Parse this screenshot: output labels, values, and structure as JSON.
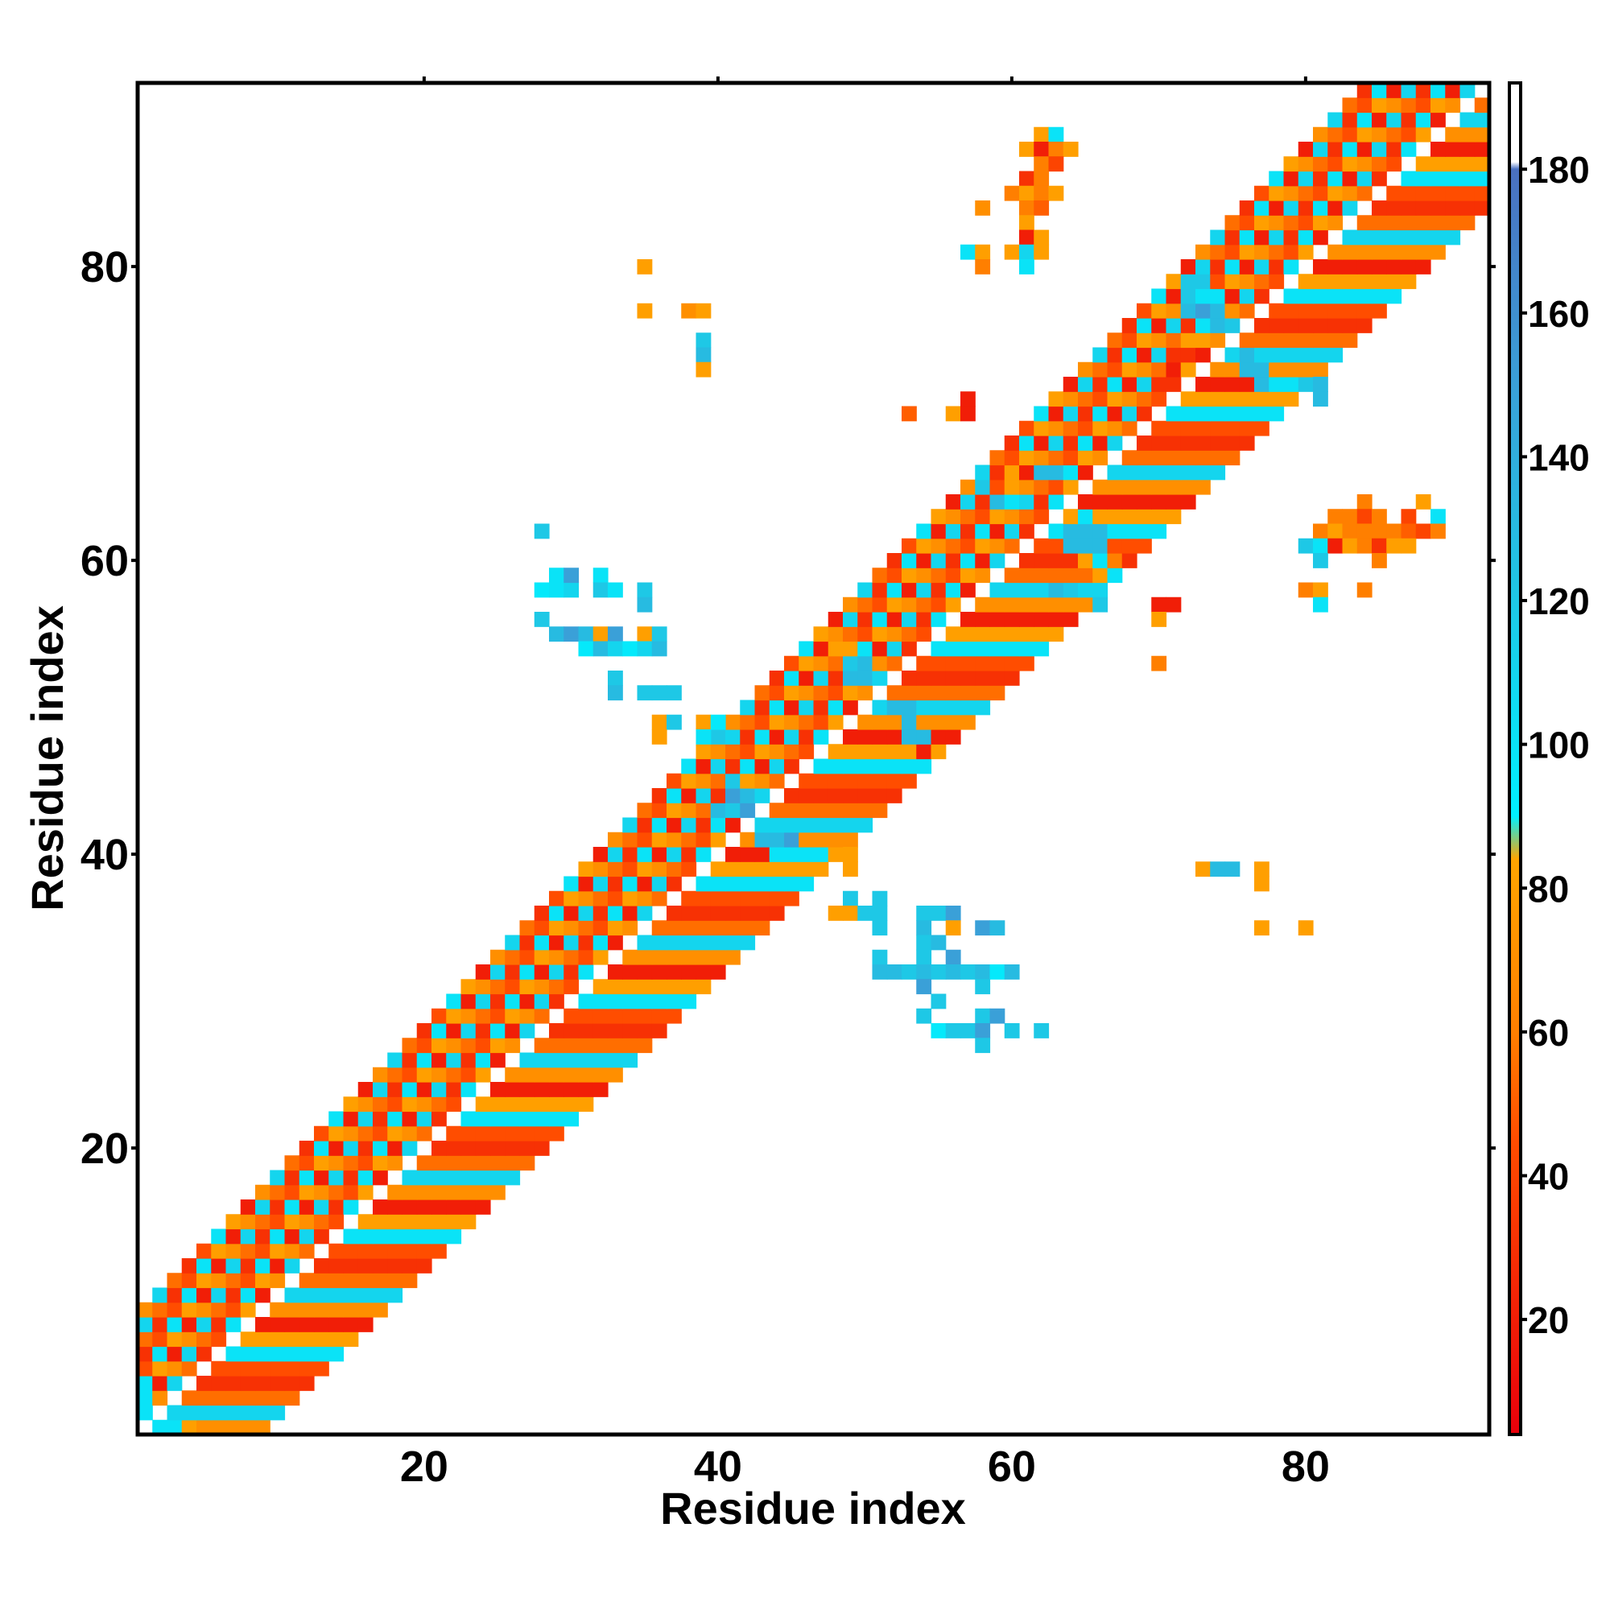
{
  "chart_data": {
    "type": "heatmap",
    "xlabel": "Residue index",
    "ylabel": "Residue index",
    "xlim": [
      0.5,
      92.5
    ],
    "ylim": [
      0.5,
      92.5
    ],
    "x_ticks": [
      20,
      40,
      60,
      80
    ],
    "y_ticks": [
      20,
      40,
      60,
      80
    ],
    "colorbar": {
      "min": 4,
      "max": 192,
      "ticks": [
        20,
        40,
        60,
        80,
        100,
        120,
        140,
        160,
        180
      ],
      "color_stops": [
        {
          "value": 4,
          "color": "#e8000b"
        },
        {
          "value": 45,
          "color": "#ff4d00"
        },
        {
          "value": 60,
          "color": "#ff7f00"
        },
        {
          "value": 84,
          "color": "#ffa500"
        },
        {
          "value": 90,
          "color": "#00f0ff"
        },
        {
          "value": 120,
          "color": "#1ec8e6"
        },
        {
          "value": 150,
          "color": "#3aa0d8"
        },
        {
          "value": 180,
          "color": "#4a70c0"
        },
        {
          "value": 181,
          "color": "#ffffff"
        },
        {
          "value": 192,
          "color": "#ffffff"
        }
      ]
    },
    "diagonal_band": {
      "segments": [
        [
          1,
          92
        ]
      ],
      "max_offset": 8
    },
    "cells": [
      {
        "x": 28,
        "y": 58,
        "v": 95
      },
      {
        "x": 29,
        "y": 58,
        "v": 100
      },
      {
        "x": 30,
        "y": 58,
        "v": 110
      },
      {
        "x": 29,
        "y": 59,
        "v": 100
      },
      {
        "x": 30,
        "y": 59,
        "v": 150
      },
      {
        "x": 28,
        "y": 56,
        "v": 120
      },
      {
        "x": 28,
        "y": 62,
        "v": 120
      },
      {
        "x": 32,
        "y": 59,
        "v": 100
      },
      {
        "x": 32,
        "y": 58,
        "v": 120
      },
      {
        "x": 33,
        "y": 58,
        "v": 100
      },
      {
        "x": 35,
        "y": 58,
        "v": 120
      },
      {
        "x": 35,
        "y": 57,
        "v": 130
      },
      {
        "x": 29,
        "y": 55,
        "v": 130
      },
      {
        "x": 30,
        "y": 55,
        "v": 150
      },
      {
        "x": 31,
        "y": 55,
        "v": 130
      },
      {
        "x": 32,
        "y": 55,
        "v": 80
      },
      {
        "x": 33,
        "y": 55,
        "v": 150
      },
      {
        "x": 35,
        "y": 55,
        "v": 80
      },
      {
        "x": 36,
        "y": 55,
        "v": 120
      },
      {
        "x": 31,
        "y": 54,
        "v": 95
      },
      {
        "x": 32,
        "y": 54,
        "v": 130
      },
      {
        "x": 33,
        "y": 54,
        "v": 110
      },
      {
        "x": 34,
        "y": 54,
        "v": 95
      },
      {
        "x": 35,
        "y": 54,
        "v": 110
      },
      {
        "x": 36,
        "y": 54,
        "v": 130
      },
      {
        "x": 33,
        "y": 52,
        "v": 120
      },
      {
        "x": 33,
        "y": 51,
        "v": 130
      },
      {
        "x": 35,
        "y": 51,
        "v": 120
      },
      {
        "x": 36,
        "y": 51,
        "v": 120
      },
      {
        "x": 37,
        "y": 51,
        "v": 120
      },
      {
        "x": 36,
        "y": 49,
        "v": 80
      },
      {
        "x": 37,
        "y": 49,
        "v": 120
      },
      {
        "x": 36,
        "y": 48,
        "v": 80
      },
      {
        "x": 39,
        "y": 49,
        "v": 80
      },
      {
        "x": 40,
        "y": 49,
        "v": 95
      },
      {
        "x": 40,
        "y": 48,
        "v": 120
      },
      {
        "x": 39,
        "y": 48,
        "v": 100
      },
      {
        "x": 48,
        "y": 40,
        "v": 80
      },
      {
        "x": 49,
        "y": 40,
        "v": 80
      },
      {
        "x": 49,
        "y": 39,
        "v": 80
      },
      {
        "x": 49,
        "y": 37,
        "v": 120
      },
      {
        "x": 51,
        "y": 37,
        "v": 120
      },
      {
        "x": 48,
        "y": 36,
        "v": 80
      },
      {
        "x": 49,
        "y": 36,
        "v": 80
      },
      {
        "x": 50,
        "y": 36,
        "v": 120
      },
      {
        "x": 51,
        "y": 36,
        "v": 120
      },
      {
        "x": 51,
        "y": 35,
        "v": 120
      },
      {
        "x": 54,
        "y": 36,
        "v": 120
      },
      {
        "x": 55,
        "y": 36,
        "v": 120
      },
      {
        "x": 56,
        "y": 36,
        "v": 150
      },
      {
        "x": 54,
        "y": 35,
        "v": 130
      },
      {
        "x": 56,
        "y": 35,
        "v": 80
      },
      {
        "x": 58,
        "y": 35,
        "v": 150
      },
      {
        "x": 59,
        "y": 35,
        "v": 130
      },
      {
        "x": 54,
        "y": 34,
        "v": 120
      },
      {
        "x": 55,
        "y": 34,
        "v": 130
      },
      {
        "x": 54,
        "y": 33,
        "v": 120
      },
      {
        "x": 56,
        "y": 33,
        "v": 150
      },
      {
        "x": 51,
        "y": 33,
        "v": 120
      },
      {
        "x": 51,
        "y": 32,
        "v": 130
      },
      {
        "x": 52,
        "y": 32,
        "v": 130
      },
      {
        "x": 53,
        "y": 32,
        "v": 120
      },
      {
        "x": 54,
        "y": 32,
        "v": 130
      },
      {
        "x": 55,
        "y": 32,
        "v": 120
      },
      {
        "x": 56,
        "y": 32,
        "v": 130
      },
      {
        "x": 57,
        "y": 32,
        "v": 120
      },
      {
        "x": 58,
        "y": 32,
        "v": 130
      },
      {
        "x": 59,
        "y": 32,
        "v": 95
      },
      {
        "x": 60,
        "y": 32,
        "v": 130
      },
      {
        "x": 54,
        "y": 31,
        "v": 150
      },
      {
        "x": 58,
        "y": 31,
        "v": 120
      },
      {
        "x": 55,
        "y": 30,
        "v": 120
      },
      {
        "x": 54,
        "y": 29,
        "v": 120
      },
      {
        "x": 58,
        "y": 29,
        "v": 120
      },
      {
        "x": 59,
        "y": 29,
        "v": 150
      },
      {
        "x": 55,
        "y": 28,
        "v": 95
      },
      {
        "x": 56,
        "y": 28,
        "v": 120
      },
      {
        "x": 57,
        "y": 28,
        "v": 120
      },
      {
        "x": 58,
        "y": 28,
        "v": 150
      },
      {
        "x": 60,
        "y": 28,
        "v": 120
      },
      {
        "x": 58,
        "y": 27,
        "v": 120
      },
      {
        "x": 62,
        "y": 28,
        "v": 120
      },
      {
        "x": 35,
        "y": 80,
        "v": 80
      },
      {
        "x": 35,
        "y": 77,
        "v": 80
      },
      {
        "x": 38,
        "y": 77,
        "v": 70
      },
      {
        "x": 39,
        "y": 77,
        "v": 80
      },
      {
        "x": 39,
        "y": 75,
        "v": 120
      },
      {
        "x": 39,
        "y": 74,
        "v": 130
      },
      {
        "x": 39,
        "y": 73,
        "v": 80
      },
      {
        "x": 62,
        "y": 89,
        "v": 80
      },
      {
        "x": 63,
        "y": 89,
        "v": 100
      },
      {
        "x": 61,
        "y": 88,
        "v": 80
      },
      {
        "x": 62,
        "y": 88,
        "v": 20
      },
      {
        "x": 63,
        "y": 88,
        "v": 60
      },
      {
        "x": 64,
        "y": 88,
        "v": 80
      },
      {
        "x": 62,
        "y": 87,
        "v": 60
      },
      {
        "x": 63,
        "y": 87,
        "v": 40
      },
      {
        "x": 61,
        "y": 86,
        "v": 30
      },
      {
        "x": 62,
        "y": 86,
        "v": 60
      },
      {
        "x": 60,
        "y": 85,
        "v": 60
      },
      {
        "x": 61,
        "y": 85,
        "v": 80
      },
      {
        "x": 62,
        "y": 85,
        "v": 60
      },
      {
        "x": 63,
        "y": 85,
        "v": 80
      },
      {
        "x": 58,
        "y": 84,
        "v": 70
      },
      {
        "x": 61,
        "y": 84,
        "v": 60
      },
      {
        "x": 62,
        "y": 84,
        "v": 50
      },
      {
        "x": 61,
        "y": 83,
        "v": 80
      },
      {
        "x": 61,
        "y": 82,
        "v": 20
      },
      {
        "x": 62,
        "y": 82,
        "v": 80
      },
      {
        "x": 57,
        "y": 81,
        "v": 100
      },
      {
        "x": 58,
        "y": 81,
        "v": 80
      },
      {
        "x": 60,
        "y": 81,
        "v": 80
      },
      {
        "x": 61,
        "y": 81,
        "v": 110
      },
      {
        "x": 62,
        "y": 81,
        "v": 80
      },
      {
        "x": 58,
        "y": 80,
        "v": 60
      },
      {
        "x": 61,
        "y": 80,
        "v": 100
      },
      {
        "x": 53,
        "y": 70,
        "v": 50
      },
      {
        "x": 56,
        "y": 70,
        "v": 80
      },
      {
        "x": 57,
        "y": 70,
        "v": 20
      },
      {
        "x": 57,
        "y": 71,
        "v": 20
      },
      {
        "x": 70,
        "y": 57,
        "v": 20
      },
      {
        "x": 71,
        "y": 57,
        "v": 20
      },
      {
        "x": 70,
        "y": 56,
        "v": 80
      },
      {
        "x": 70,
        "y": 53,
        "v": 60
      },
      {
        "x": 73,
        "y": 39,
        "v": 80
      },
      {
        "x": 74,
        "y": 39,
        "v": 130
      },
      {
        "x": 75,
        "y": 39,
        "v": 130
      },
      {
        "x": 77,
        "y": 39,
        "v": 80
      },
      {
        "x": 77,
        "y": 38,
        "v": 80
      },
      {
        "x": 77,
        "y": 35,
        "v": 80
      },
      {
        "x": 80,
        "y": 35,
        "v": 80
      },
      {
        "x": 84,
        "y": 64,
        "v": 60
      },
      {
        "x": 88,
        "y": 64,
        "v": 80
      },
      {
        "x": 82,
        "y": 63,
        "v": 60
      },
      {
        "x": 83,
        "y": 63,
        "v": 60
      },
      {
        "x": 84,
        "y": 63,
        "v": 40
      },
      {
        "x": 85,
        "y": 63,
        "v": 60
      },
      {
        "x": 87,
        "y": 63,
        "v": 40
      },
      {
        "x": 89,
        "y": 63,
        "v": 100
      },
      {
        "x": 81,
        "y": 62,
        "v": 60
      },
      {
        "x": 82,
        "y": 62,
        "v": 80
      },
      {
        "x": 83,
        "y": 62,
        "v": 60
      },
      {
        "x": 84,
        "y": 62,
        "v": 60
      },
      {
        "x": 85,
        "y": 62,
        "v": 60
      },
      {
        "x": 86,
        "y": 62,
        "v": 60
      },
      {
        "x": 87,
        "y": 62,
        "v": 50
      },
      {
        "x": 88,
        "y": 62,
        "v": 40
      },
      {
        "x": 89,
        "y": 62,
        "v": 60
      },
      {
        "x": 80,
        "y": 61,
        "v": 120
      },
      {
        "x": 81,
        "y": 61,
        "v": 100
      },
      {
        "x": 82,
        "y": 61,
        "v": 20
      },
      {
        "x": 83,
        "y": 61,
        "v": 80
      },
      {
        "x": 84,
        "y": 61,
        "v": 60
      },
      {
        "x": 85,
        "y": 61,
        "v": 30
      },
      {
        "x": 86,
        "y": 61,
        "v": 80
      },
      {
        "x": 87,
        "y": 61,
        "v": 80
      },
      {
        "x": 81,
        "y": 60,
        "v": 120
      },
      {
        "x": 85,
        "y": 60,
        "v": 60
      },
      {
        "x": 80,
        "y": 58,
        "v": 60
      },
      {
        "x": 81,
        "y": 58,
        "v": 80
      },
      {
        "x": 84,
        "y": 58,
        "v": 60
      },
      {
        "x": 81,
        "y": 57,
        "v": 100
      },
      {
        "x": 72,
        "y": 79,
        "v": 120
      },
      {
        "x": 73,
        "y": 79,
        "v": 120
      },
      {
        "x": 72,
        "y": 78,
        "v": 120
      },
      {
        "x": 73,
        "y": 78,
        "v": 100
      },
      {
        "x": 72,
        "y": 77,
        "v": 130
      },
      {
        "x": 73,
        "y": 77,
        "v": 150
      },
      {
        "x": 74,
        "y": 77,
        "v": 130
      },
      {
        "x": 74,
        "y": 76,
        "v": 130
      },
      {
        "x": 75,
        "y": 76,
        "v": 120
      },
      {
        "x": 76,
        "y": 74,
        "v": 130
      },
      {
        "x": 76,
        "y": 73,
        "v": 130
      },
      {
        "x": 77,
        "y": 73,
        "v": 130
      },
      {
        "x": 77,
        "y": 72,
        "v": 130
      },
      {
        "x": 80,
        "y": 72,
        "v": 120
      },
      {
        "x": 81,
        "y": 72,
        "v": 130
      },
      {
        "x": 81,
        "y": 71,
        "v": 130
      },
      {
        "x": 79,
        "y": 72,
        "v": 100
      },
      {
        "x": 78,
        "y": 72,
        "v": 100
      },
      {
        "x": 73,
        "y": 75,
        "v": 80
      },
      {
        "x": 72,
        "y": 75,
        "v": 80
      },
      {
        "x": 72,
        "y": 74,
        "v": 30
      },
      {
        "x": 71,
        "y": 73,
        "v": 20
      },
      {
        "x": 71,
        "y": 72,
        "v": 30
      },
      {
        "x": 58,
        "y": 65,
        "v": 120
      },
      {
        "x": 60,
        "y": 66,
        "v": 80
      },
      {
        "x": 61,
        "y": 67,
        "v": 80
      },
      {
        "x": 62,
        "y": 66,
        "v": 130
      },
      {
        "x": 63,
        "y": 66,
        "v": 130
      },
      {
        "x": 64,
        "y": 66,
        "v": 100
      },
      {
        "x": 59,
        "y": 64,
        "v": 130
      },
      {
        "x": 60,
        "y": 64,
        "v": 100
      },
      {
        "x": 65,
        "y": 63,
        "v": 100
      },
      {
        "x": 64,
        "y": 62,
        "v": 130
      },
      {
        "x": 65,
        "y": 62,
        "v": 130
      },
      {
        "x": 66,
        "y": 62,
        "v": 130
      },
      {
        "x": 64,
        "y": 61,
        "v": 130
      },
      {
        "x": 65,
        "y": 61,
        "v": 130
      },
      {
        "x": 66,
        "y": 61,
        "v": 130
      },
      {
        "x": 66,
        "y": 60,
        "v": 100
      },
      {
        "x": 67,
        "y": 60,
        "v": 60
      },
      {
        "x": 65,
        "y": 60,
        "v": 80
      },
      {
        "x": 66,
        "y": 59,
        "v": 80
      },
      {
        "x": 67,
        "y": 59,
        "v": 100
      },
      {
        "x": 63,
        "y": 58,
        "v": 130
      },
      {
        "x": 64,
        "y": 58,
        "v": 120
      },
      {
        "x": 66,
        "y": 57,
        "v": 120
      },
      {
        "x": 49,
        "y": 53,
        "v": 120
      },
      {
        "x": 50,
        "y": 53,
        "v": 130
      },
      {
        "x": 49,
        "y": 52,
        "v": 130
      },
      {
        "x": 50,
        "y": 52,
        "v": 130
      },
      {
        "x": 52,
        "y": 50,
        "v": 130
      },
      {
        "x": 53,
        "y": 50,
        "v": 130
      },
      {
        "x": 53,
        "y": 49,
        "v": 130
      },
      {
        "x": 54,
        "y": 48,
        "v": 130
      },
      {
        "x": 53,
        "y": 48,
        "v": 130
      },
      {
        "x": 54,
        "y": 47,
        "v": 20
      },
      {
        "x": 47,
        "y": 54,
        "v": 20
      },
      {
        "x": 48,
        "y": 54,
        "v": 80
      },
      {
        "x": 49,
        "y": 54,
        "v": 80
      },
      {
        "x": 41,
        "y": 45,
        "v": 120
      },
      {
        "x": 41,
        "y": 44,
        "v": 150
      },
      {
        "x": 42,
        "y": 44,
        "v": 130
      },
      {
        "x": 40,
        "y": 43,
        "v": 130
      },
      {
        "x": 41,
        "y": 43,
        "v": 120
      },
      {
        "x": 42,
        "y": 43,
        "v": 150
      },
      {
        "x": 43,
        "y": 41,
        "v": 130
      },
      {
        "x": 44,
        "y": 41,
        "v": 130
      },
      {
        "x": 45,
        "y": 41,
        "v": 150
      },
      {
        "x": 44,
        "y": 40,
        "v": 100
      },
      {
        "x": 45,
        "y": 40,
        "v": 100
      },
      {
        "x": 46,
        "y": 40,
        "v": 100
      },
      {
        "x": 47,
        "y": 40,
        "v": 100
      },
      {
        "x": 46,
        "y": 39,
        "v": 80
      },
      {
        "x": 2,
        "y": 1,
        "v": 100
      },
      {
        "x": 3,
        "y": 1,
        "v": 100
      },
      {
        "x": 4,
        "y": 1,
        "v": 80
      },
      {
        "x": 1,
        "y": 2,
        "v": 100
      },
      {
        "x": 1,
        "y": 3,
        "v": 100
      }
    ]
  }
}
